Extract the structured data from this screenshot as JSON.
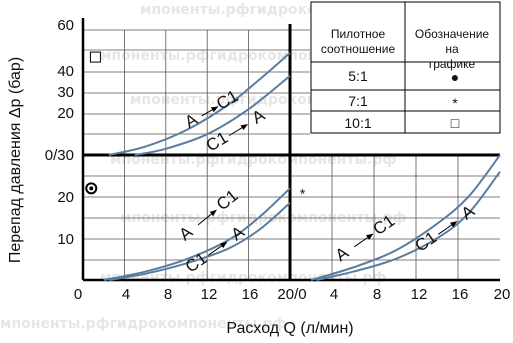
{
  "chart_data": {
    "type": "line",
    "ylabel": "Перепад давления Δp (бар)",
    "xlabel": "Расход Q (л/мин)",
    "x_ticks_left": [
      "0",
      "4",
      "8",
      "12",
      "16",
      "20/0"
    ],
    "x_ticks_right": [
      "4",
      "8",
      "12",
      "16",
      "20"
    ],
    "y_ticks_upper": [
      "0/30",
      "20",
      "30",
      "40",
      "60"
    ],
    "y_ticks_lower": [
      "10",
      "20"
    ],
    "watermark": "мпоненты.рфгидрокомпоненты.рф",
    "panels": [
      {
        "name": "upper-left",
        "xlim": [
          0,
          20
        ],
        "ylim": [
          0,
          60
        ],
        "series": [
          {
            "label": "A",
            "x": [
              2.5,
              6,
              10,
              14,
              17,
              20
            ],
            "y": [
              0,
              4,
              12,
              24,
              36,
              49
            ]
          },
          {
            "label": "C1",
            "x": [
              5,
              8,
              12,
              16,
              20
            ],
            "y": [
              0,
              3,
              10,
              22,
              38
            ]
          }
        ],
        "annotations": [
          {
            "from": "A",
            "to": "C1",
            "x": [
              10.5,
              14
            ],
            "y": [
              16,
              26
            ]
          },
          {
            "from": "C1",
            "to": "A",
            "x": [
              13,
              17
            ],
            "y": [
              6,
              18
            ]
          }
        ]
      },
      {
        "name": "lower-left",
        "xlim": [
          0,
          20
        ],
        "ylim": [
          0,
          30
        ],
        "series": [
          {
            "label": "A → C1",
            "x": [
              2,
              6,
              10,
              14,
              17,
              20
            ],
            "y": [
              0,
              2,
              5,
              9.5,
              15,
              22
            ]
          },
          {
            "label": "C1 → A",
            "x": [
              2.5,
              6,
              10,
              14,
              17,
              20
            ],
            "y": [
              0,
              1.5,
              4,
              7.5,
              12,
              18.5
            ]
          }
        ],
        "annotations": [
          {
            "from": "A",
            "to": "C1",
            "x": [
              10,
              14
            ],
            "y": [
              11,
              19
            ]
          },
          {
            "from": "C1",
            "to": "A",
            "x": [
              11,
              15
            ],
            "y": [
              4,
              11
            ]
          }
        ]
      },
      {
        "name": "lower-right",
        "xlim": [
          0,
          20
        ],
        "ylim": [
          0,
          30
        ],
        "series": [
          {
            "label": "A → C1",
            "x": [
              2,
              6,
              10,
              14,
              17,
              20
            ],
            "y": [
              0,
              3,
              7,
              13.5,
              20,
              30
            ]
          },
          {
            "label": "C1 → A",
            "x": [
              2.5,
              6,
              10,
              14,
              17,
              20
            ],
            "y": [
              0,
              2,
              5,
              10,
              16,
              26
            ]
          }
        ],
        "annotations": [
          {
            "from": "A",
            "to": "C1",
            "x": [
              5,
              9
            ],
            "y": [
              6,
              13
            ]
          },
          {
            "from": "C1",
            "to": "A",
            "x": [
              13,
              17
            ],
            "y": [
              9,
              16
            ]
          }
        ]
      }
    ],
    "markers": [
      {
        "symbol": "●",
        "name": "5:1",
        "panel": "lower-left",
        "x": 0.8,
        "y": 22
      },
      {
        "symbol": "*",
        "name": "7:1",
        "panel": "lower-right",
        "x": 1.2,
        "y": 21
      },
      {
        "symbol": "□",
        "name": "10:1",
        "panel": "upper-left",
        "x": 1.2,
        "y": 47
      }
    ],
    "legend": {
      "position": "top-right",
      "headers": [
        "Пилотное соотношение",
        "Обозначение на графике"
      ],
      "rows": [
        {
          "ratio": "5:1",
          "symbol": "●"
        },
        {
          "ratio": "7:1",
          "symbol": "*"
        },
        {
          "ratio": "10:1",
          "symbol": "□"
        }
      ]
    },
    "grid": true,
    "colors": {
      "curve": "#5a7d9f",
      "axis": "#000000",
      "grid": "#555555"
    }
  }
}
